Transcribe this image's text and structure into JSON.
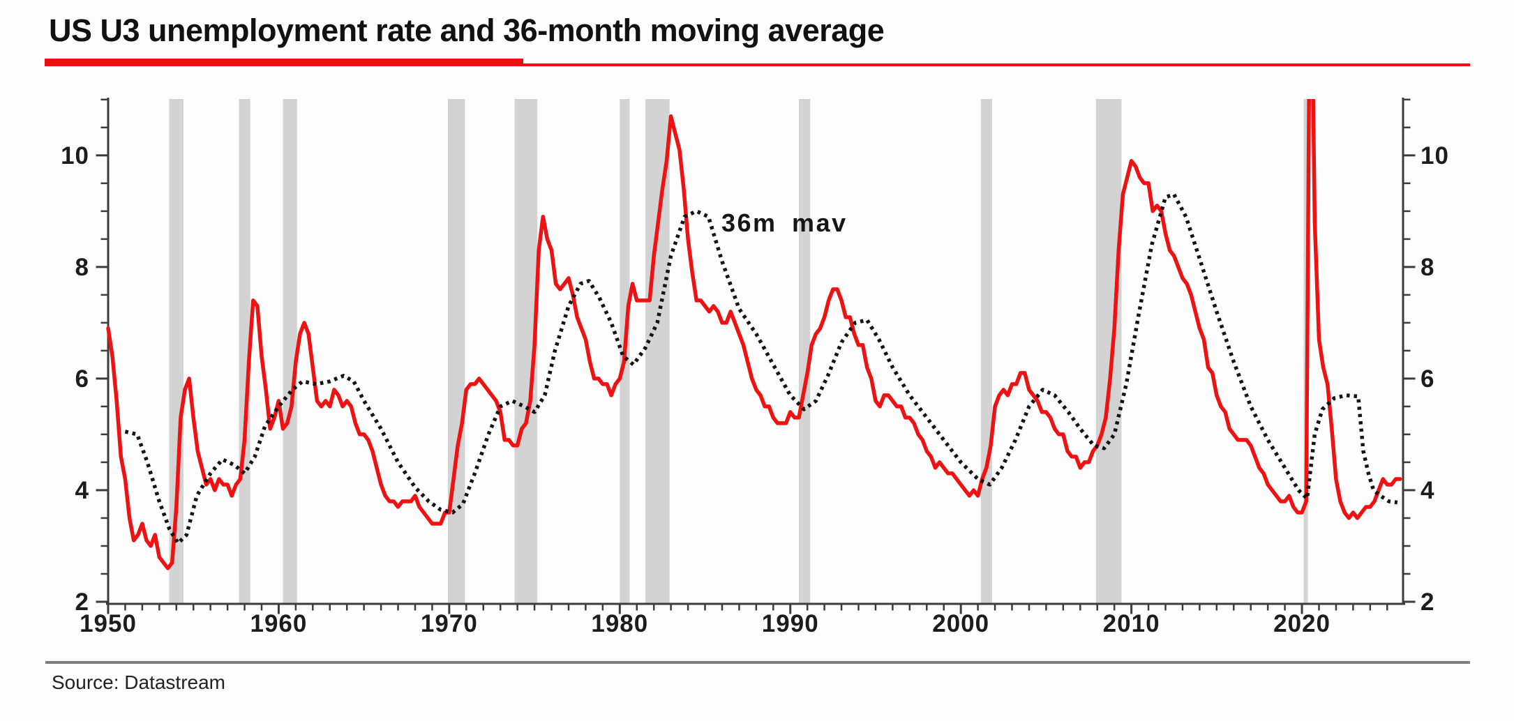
{
  "title": {
    "text": "US U3 unemployment rate and 36-month moving average"
  },
  "source": {
    "text": "Source: Datastream"
  },
  "colors": {
    "u3_red": "#ee1212",
    "mav_black": "#141414",
    "recession_gray": "#d3d3d3",
    "axis": "#3c3c3c",
    "label_text": "#1c1c1c",
    "title_rule_red": "#ee0f0f",
    "footer_rule_gray": "#7e7e7e",
    "background": "#fdfdfd"
  },
  "chart_data": {
    "type": "line",
    "title": "US U3 unemployment rate and 36-month moving average",
    "xlabel": "",
    "ylabel": "",
    "x_axis": {
      "min": 1950,
      "max": 2025.93,
      "tick_interval_years": 1,
      "label_interval_years": 10,
      "tick_labels": [
        "1950",
        "1960",
        "1970",
        "1980",
        "1990",
        "2000",
        "2010",
        "2020"
      ]
    },
    "y_axis": {
      "min": 2,
      "max": 11.01,
      "tick_interval": 0.5,
      "labels": [
        "2",
        "4",
        "6",
        "8",
        "10"
      ],
      "sides": "both",
      "grid": false
    },
    "annotation": {
      "text": "36m mav",
      "x": 1986.2,
      "y": 8.8
    },
    "legend_position": "none",
    "recession_bands": [
      [
        1953.58,
        1954.42
      ],
      [
        1957.67,
        1958.33
      ],
      [
        1960.25,
        1961.08
      ],
      [
        1969.92,
        1970.92
      ],
      [
        1973.83,
        1975.17
      ],
      [
        1980.0,
        1980.58
      ],
      [
        1981.5,
        1982.92
      ],
      [
        1990.5,
        1991.17
      ],
      [
        2001.17,
        2001.83
      ],
      [
        2007.92,
        2009.42
      ],
      [
        2020.1,
        2020.35
      ]
    ],
    "series": [
      {
        "name": "US U3 unemployment rate",
        "style": "solid",
        "color_key": "u3_red",
        "start": 1950.0,
        "step": 0.25,
        "values": [
          6.9,
          6.4,
          5.6,
          4.6,
          4.2,
          3.5,
          3.1,
          3.2,
          3.4,
          3.1,
          3.0,
          3.2,
          2.8,
          2.7,
          2.6,
          2.7,
          3.7,
          5.3,
          5.8,
          6.0,
          5.3,
          4.7,
          4.4,
          4.1,
          4.2,
          4.0,
          4.2,
          4.1,
          4.1,
          3.9,
          4.1,
          4.2,
          4.9,
          6.3,
          7.4,
          7.3,
          6.4,
          5.8,
          5.1,
          5.3,
          5.6,
          5.1,
          5.2,
          5.5,
          6.3,
          6.8,
          7.0,
          6.8,
          6.2,
          5.6,
          5.5,
          5.6,
          5.5,
          5.8,
          5.7,
          5.5,
          5.6,
          5.5,
          5.2,
          5.0,
          5.0,
          4.9,
          4.7,
          4.4,
          4.1,
          3.9,
          3.8,
          3.8,
          3.7,
          3.8,
          3.8,
          3.8,
          3.9,
          3.7,
          3.6,
          3.5,
          3.4,
          3.4,
          3.4,
          3.6,
          3.6,
          4.2,
          4.8,
          5.2,
          5.8,
          5.9,
          5.9,
          6.0,
          5.9,
          5.8,
          5.7,
          5.6,
          5.4,
          4.9,
          4.9,
          4.8,
          4.8,
          5.1,
          5.2,
          5.6,
          6.6,
          8.3,
          8.9,
          8.5,
          8.3,
          7.7,
          7.6,
          7.7,
          7.8,
          7.5,
          7.1,
          6.9,
          6.7,
          6.3,
          6.0,
          6.0,
          5.9,
          5.9,
          5.7,
          5.9,
          6.0,
          6.3,
          7.3,
          7.7,
          7.4,
          7.4,
          7.4,
          7.4,
          8.2,
          8.8,
          9.4,
          9.9,
          10.7,
          10.4,
          10.1,
          9.4,
          8.5,
          7.9,
          7.4,
          7.4,
          7.3,
          7.2,
          7.3,
          7.2,
          7.0,
          7.0,
          7.2,
          7.0,
          6.8,
          6.6,
          6.3,
          6.0,
          5.8,
          5.7,
          5.5,
          5.5,
          5.3,
          5.2,
          5.2,
          5.2,
          5.4,
          5.3,
          5.3,
          5.7,
          6.1,
          6.6,
          6.8,
          6.9,
          7.1,
          7.4,
          7.6,
          7.6,
          7.4,
          7.1,
          7.1,
          6.8,
          6.6,
          6.6,
          6.2,
          6.0,
          5.6,
          5.5,
          5.7,
          5.7,
          5.6,
          5.5,
          5.5,
          5.3,
          5.3,
          5.2,
          5.0,
          4.9,
          4.7,
          4.6,
          4.4,
          4.5,
          4.4,
          4.3,
          4.3,
          4.2,
          4.1,
          4.0,
          3.9,
          4.0,
          3.9,
          4.2,
          4.4,
          4.8,
          5.5,
          5.7,
          5.8,
          5.7,
          5.9,
          5.9,
          6.1,
          6.1,
          5.8,
          5.7,
          5.6,
          5.4,
          5.4,
          5.3,
          5.1,
          5.0,
          5.0,
          4.7,
          4.6,
          4.6,
          4.4,
          4.5,
          4.5,
          4.7,
          4.8,
          5.0,
          5.3,
          6.0,
          6.9,
          8.3,
          9.3,
          9.6,
          9.9,
          9.8,
          9.6,
          9.5,
          9.5,
          9.0,
          9.1,
          9.0,
          8.6,
          8.3,
          8.2,
          8.0,
          7.8,
          7.7,
          7.5,
          7.2,
          6.9,
          6.7,
          6.2,
          6.1,
          5.7,
          5.5,
          5.4,
          5.1,
          5.0,
          4.9,
          4.9,
          4.9,
          4.8,
          4.6,
          4.4,
          4.3,
          4.1,
          4.0,
          3.9,
          3.8,
          3.8,
          3.9,
          3.7,
          3.6,
          3.6,
          3.8,
          14.8,
          8.8,
          6.7,
          6.2,
          5.9,
          5.1,
          4.2,
          3.8,
          3.6,
          3.5,
          3.6,
          3.5,
          3.6,
          3.7,
          3.7,
          3.8,
          4.0,
          4.2,
          4.1,
          4.1,
          4.2,
          4.2
        ]
      },
      {
        "name": "36m mav",
        "style": "dotted",
        "color_key": "mav_black",
        "points": [
          [
            1951.0,
            5.05
          ],
          [
            1951.7,
            5.0
          ],
          [
            1952.3,
            4.5
          ],
          [
            1953.0,
            3.8
          ],
          [
            1953.6,
            3.3
          ],
          [
            1954.1,
            3.05
          ],
          [
            1954.6,
            3.2
          ],
          [
            1955.2,
            3.9
          ],
          [
            1956.0,
            4.3
          ],
          [
            1956.7,
            4.55
          ],
          [
            1957.4,
            4.45
          ],
          [
            1958.0,
            4.3
          ],
          [
            1958.6,
            4.6
          ],
          [
            1959.2,
            5.15
          ],
          [
            1960.0,
            5.5
          ],
          [
            1960.8,
            5.8
          ],
          [
            1961.4,
            5.95
          ],
          [
            1962.2,
            5.9
          ],
          [
            1963.0,
            5.95
          ],
          [
            1963.8,
            6.05
          ],
          [
            1964.4,
            5.95
          ],
          [
            1965.0,
            5.6
          ],
          [
            1966.0,
            5.1
          ],
          [
            1967.0,
            4.5
          ],
          [
            1968.0,
            4.05
          ],
          [
            1968.8,
            3.8
          ],
          [
            1969.5,
            3.65
          ],
          [
            1970.2,
            3.6
          ],
          [
            1970.8,
            3.75
          ],
          [
            1971.5,
            4.3
          ],
          [
            1972.3,
            5.0
          ],
          [
            1973.0,
            5.5
          ],
          [
            1973.7,
            5.6
          ],
          [
            1974.4,
            5.5
          ],
          [
            1975.0,
            5.4
          ],
          [
            1975.6,
            5.7
          ],
          [
            1976.2,
            6.5
          ],
          [
            1977.0,
            7.3
          ],
          [
            1977.7,
            7.7
          ],
          [
            1978.2,
            7.75
          ],
          [
            1978.8,
            7.45
          ],
          [
            1979.5,
            7.0
          ],
          [
            1980.2,
            6.4
          ],
          [
            1980.8,
            6.25
          ],
          [
            1981.5,
            6.55
          ],
          [
            1982.2,
            7.0
          ],
          [
            1983.0,
            8.2
          ],
          [
            1983.8,
            8.9
          ],
          [
            1984.5,
            9.0
          ],
          [
            1985.2,
            8.9
          ],
          [
            1986.0,
            8.1
          ],
          [
            1987.0,
            7.25
          ],
          [
            1988.0,
            6.8
          ],
          [
            1989.0,
            6.25
          ],
          [
            1990.0,
            5.7
          ],
          [
            1990.8,
            5.45
          ],
          [
            1991.5,
            5.6
          ],
          [
            1992.2,
            6.05
          ],
          [
            1993.0,
            6.65
          ],
          [
            1993.8,
            7.0
          ],
          [
            1994.5,
            7.05
          ],
          [
            1995.2,
            6.7
          ],
          [
            1996.0,
            6.2
          ],
          [
            1997.0,
            5.7
          ],
          [
            1998.0,
            5.3
          ],
          [
            1999.0,
            4.9
          ],
          [
            2000.0,
            4.5
          ],
          [
            2001.0,
            4.2
          ],
          [
            2001.7,
            4.1
          ],
          [
            2002.4,
            4.4
          ],
          [
            2003.2,
            4.9
          ],
          [
            2004.0,
            5.5
          ],
          [
            2004.8,
            5.8
          ],
          [
            2005.5,
            5.7
          ],
          [
            2006.3,
            5.4
          ],
          [
            2007.0,
            5.1
          ],
          [
            2007.8,
            4.8
          ],
          [
            2008.4,
            4.75
          ],
          [
            2009.0,
            5.0
          ],
          [
            2009.7,
            5.9
          ],
          [
            2010.4,
            7.1
          ],
          [
            2011.2,
            8.4
          ],
          [
            2012.0,
            9.25
          ],
          [
            2012.5,
            9.3
          ],
          [
            2013.2,
            8.9
          ],
          [
            2014.0,
            8.15
          ],
          [
            2015.0,
            7.2
          ],
          [
            2016.0,
            6.3
          ],
          [
            2017.0,
            5.5
          ],
          [
            2018.0,
            4.9
          ],
          [
            2019.0,
            4.4
          ],
          [
            2019.8,
            4.0
          ],
          [
            2020.3,
            3.85
          ],
          [
            2020.75,
            5.0
          ],
          [
            2021.2,
            5.45
          ],
          [
            2021.9,
            5.65
          ],
          [
            2022.6,
            5.7
          ],
          [
            2023.3,
            5.68
          ],
          [
            2023.6,
            4.7
          ],
          [
            2023.9,
            4.3
          ],
          [
            2024.2,
            4.0
          ],
          [
            2024.6,
            3.9
          ],
          [
            2025.1,
            3.8
          ],
          [
            2025.6,
            3.78
          ]
        ]
      }
    ]
  }
}
